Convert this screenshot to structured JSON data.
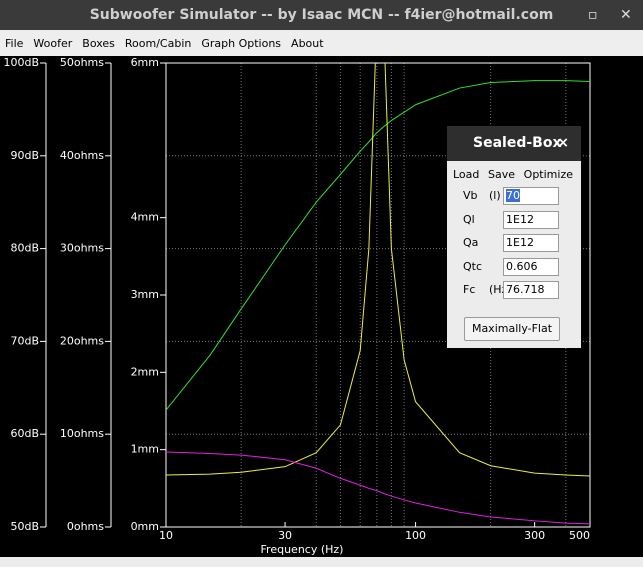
{
  "window": {
    "title": "Subwoofer Simulator -- by Isaac MCN -- f4ier@hotmail.com"
  },
  "menu": [
    "File",
    "Woofer",
    "Boxes",
    "Room/Cabin",
    "Graph Options",
    "About"
  ],
  "chart_data": {
    "type": "line",
    "xlabel": "Frequency (Hz)",
    "xscale": "log",
    "xlim": [
      10,
      500
    ],
    "xticks": [
      10,
      30,
      100,
      300,
      500
    ],
    "minor_xticks": [
      20,
      40,
      50,
      60,
      70,
      80,
      90,
      200,
      400
    ],
    "ylim": [
      50,
      100
    ],
    "yticks": [
      {
        "value": 50,
        "label": "50dB"
      },
      {
        "value": 60,
        "label": "60dB"
      },
      {
        "value": 70,
        "label": "70dB"
      },
      {
        "value": 80,
        "label": "80dB"
      },
      {
        "value": 90,
        "label": "90dB"
      },
      {
        "value": 100,
        "label": "100dB"
      }
    ],
    "y2lim": [
      0,
      50
    ],
    "y2ticks": [
      {
        "value": 0,
        "label": "0ohms"
      },
      {
        "value": 10,
        "label": "10ohms"
      },
      {
        "value": 20,
        "label": "20ohms"
      },
      {
        "value": 30,
        "label": "30ohms"
      },
      {
        "value": 40,
        "label": "40ohms"
      },
      {
        "value": 50,
        "label": "50ohms"
      }
    ],
    "y3lim": [
      0,
      6
    ],
    "y3ticks": [
      {
        "value": 0,
        "label": "0mm"
      },
      {
        "value": 1,
        "label": "1mm"
      },
      {
        "value": 2,
        "label": "2mm"
      },
      {
        "value": 3,
        "label": "3mm"
      },
      {
        "value": 4,
        "label": "4mm"
      },
      {
        "value": 6,
        "label": "6mm"
      }
    ],
    "grid": true,
    "x": [
      10,
      15,
      20,
      30,
      40,
      50,
      60,
      65,
      70,
      75,
      80,
      90,
      100,
      150,
      200,
      300,
      400,
      500
    ],
    "series": [
      {
        "axis": "y",
        "color": "#33dd33",
        "values": [
          62.6,
          68.5,
          73.5,
          80.4,
          85,
          88,
          90.5,
          91.5,
          92.5,
          93.2,
          93.8,
          94.7,
          95.5,
          97.3,
          97.9,
          98.1,
          98.1,
          98
        ]
      },
      {
        "axis": "y2",
        "color": "#eeee44",
        "values": [
          5.6,
          5.7,
          5.9,
          6.5,
          8,
          11,
          19,
          30,
          55,
          52,
          30,
          18,
          13.5,
          8,
          6.6,
          5.8,
          5.6,
          5.5
        ]
      },
      {
        "axis": "y3",
        "color": "#dd22dd",
        "values": [
          0.97,
          0.95,
          0.93,
          0.87,
          0.76,
          0.63,
          0.54,
          0.5,
          0.47,
          0.43,
          0.4,
          0.35,
          0.31,
          0.19,
          0.13,
          0.08,
          0.05,
          0.04
        ]
      }
    ]
  },
  "dialog": {
    "title": "Sealed-Box",
    "close": "×",
    "menu": [
      "Load",
      "Save",
      "Optimize"
    ],
    "fields": [
      {
        "label": "Vb",
        "unit": "(l)",
        "value": "70"
      },
      {
        "label": "Ql",
        "value": "1E12"
      },
      {
        "label": "Qa",
        "value": "1E12"
      },
      {
        "label": "Qtc",
        "value": "0.606"
      },
      {
        "label": "Fc",
        "unit": "(Hz)",
        "value": "76.718"
      }
    ],
    "button": "Maximally-Flat"
  }
}
